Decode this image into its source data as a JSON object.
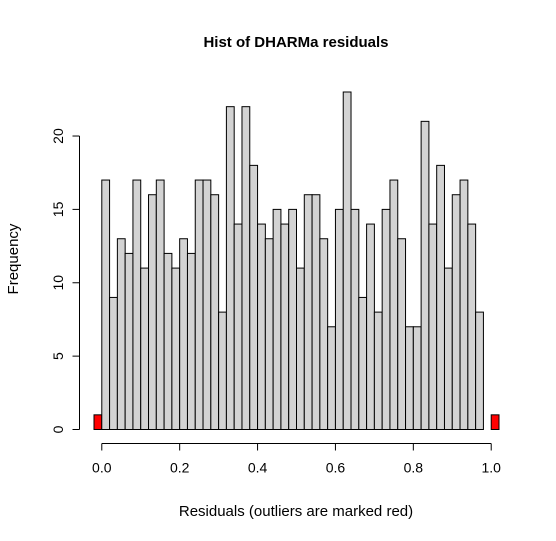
{
  "chart_data": {
    "type": "bar",
    "title": "Hist of DHARMa residuals",
    "xlabel": "Residuals (outliers are marked red)",
    "ylabel": "Frequency",
    "xlim": [
      -0.02,
      1.02
    ],
    "ylim": [
      0,
      23
    ],
    "x_ticks": [
      "0.0",
      "0.2",
      "0.4",
      "0.6",
      "0.8",
      "1.0"
    ],
    "y_ticks": [
      "0",
      "5",
      "10",
      "15",
      "20"
    ],
    "bin_width": 0.02,
    "colors": {
      "normal": "#d3d3d3",
      "outlier": "#ff0000",
      "stroke": "#000000"
    },
    "outlier_bins": [
      {
        "x0": -0.02,
        "x1": 0.0,
        "count": 1
      },
      {
        "x0": 1.0,
        "x1": 1.02,
        "count": 1
      }
    ],
    "bins_start": 0.0,
    "counts": [
      17,
      9,
      13,
      12,
      17,
      11,
      16,
      17,
      12,
      11,
      13,
      12,
      17,
      17,
      16,
      8,
      22,
      14,
      22,
      18,
      14,
      13,
      15,
      14,
      15,
      11,
      16,
      16,
      13,
      7,
      15,
      23,
      15,
      9,
      14,
      8,
      15,
      17,
      13,
      7,
      7,
      21,
      14,
      18,
      11,
      16,
      17,
      14,
      8
    ]
  }
}
